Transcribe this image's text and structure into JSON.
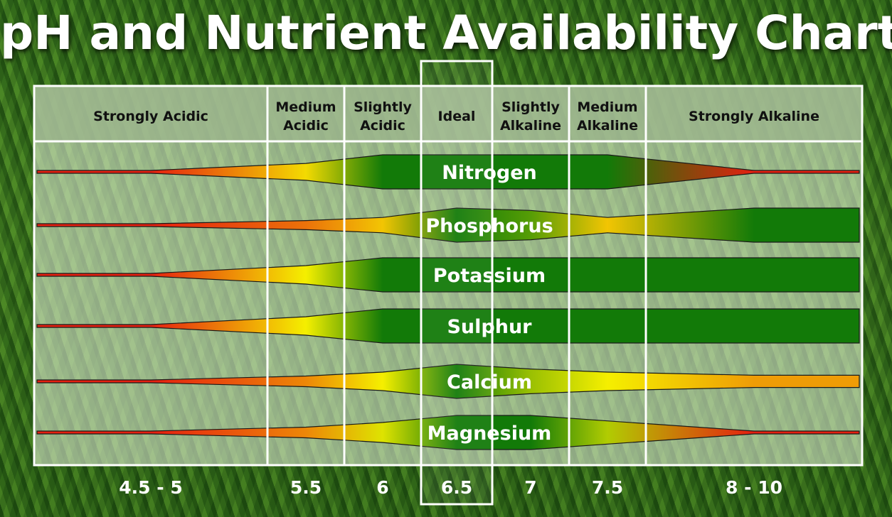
{
  "title": "pH and Nutrient Availability Chart",
  "colors": {
    "high": "#127a08",
    "mid": "#f5ef00",
    "low": "#e51f10",
    "frame": "#ffffff"
  },
  "chart_data": {
    "type": "table",
    "title": "pH and Nutrient Availability Chart",
    "columns": [
      {
        "band": [
          "Strongly Acidic"
        ],
        "ph": "4.5 - 5"
      },
      {
        "band": [
          "Medium",
          "Acidic"
        ],
        "ph": "5.5"
      },
      {
        "band": [
          "Slightly",
          "Acidic"
        ],
        "ph": "6"
      },
      {
        "band": [
          "Ideal"
        ],
        "ph": "6.5"
      },
      {
        "band": [
          "Slightly",
          "Alkaline"
        ],
        "ph": "7"
      },
      {
        "band": [
          "Medium",
          "Alkaline"
        ],
        "ph": "7.5"
      },
      {
        "band": [
          "Strongly Alkaline"
        ],
        "ph": "8 - 10"
      }
    ],
    "highlight_column": "Ideal",
    "series": [
      {
        "name": "Nitrogen",
        "availability": [
          0.0,
          0.45,
          1.0,
          1.0,
          1.0,
          1.0,
          0.0
        ]
      },
      {
        "name": "Phosphorus",
        "availability": [
          0.0,
          0.2,
          0.4,
          1.0,
          0.85,
          0.4,
          1.0
        ]
      },
      {
        "name": "Potassium",
        "availability": [
          0.0,
          0.5,
          1.0,
          1.0,
          1.0,
          1.0,
          1.0
        ]
      },
      {
        "name": "Sulphur",
        "availability": [
          0.0,
          0.5,
          1.0,
          1.0,
          1.0,
          1.0,
          1.0
        ]
      },
      {
        "name": "Calcium",
        "availability": [
          0.0,
          0.25,
          0.5,
          1.0,
          0.7,
          0.5,
          0.3
        ]
      },
      {
        "name": "Magnesium",
        "availability": [
          0.0,
          0.25,
          0.55,
          1.0,
          1.0,
          0.65,
          0.0
        ]
      }
    ]
  }
}
